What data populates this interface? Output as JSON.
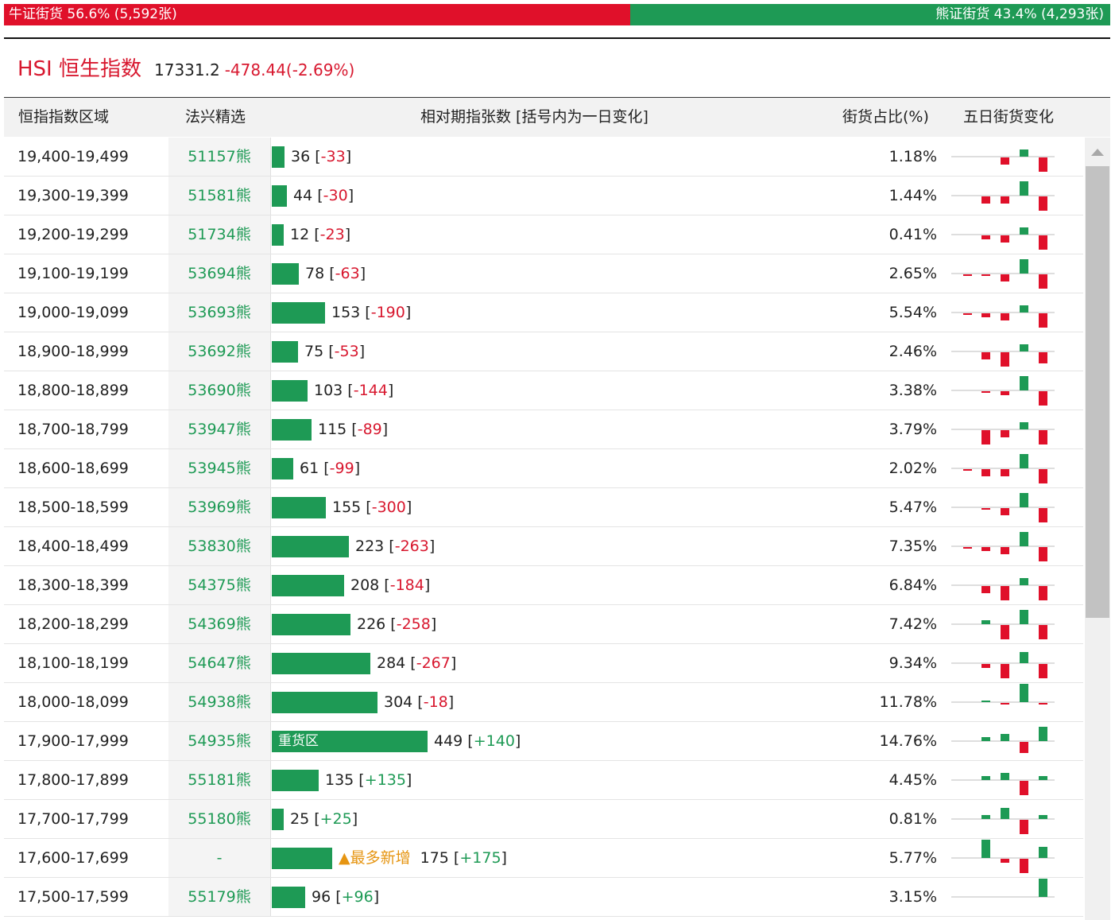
{
  "ratio": {
    "bull_label": "牛证街货 56.6% (5,592张)",
    "bear_label": "熊证街货 43.4% (4,293张)",
    "bull_fraction": 0.566,
    "bull_color": "#e0102a",
    "bear_color": "#1e9a55"
  },
  "index": {
    "code": "HSI 恒生指数",
    "price": "17331.2",
    "change": "-478.44(-2.69%)"
  },
  "table": {
    "headers": {
      "range": "恒指指数区域",
      "pick": "法兴精选",
      "contracts": "相对期指张数 [括号内为一日变化]",
      "pct": "街货占比(%)",
      "five_day": "五日街货变化"
    },
    "rows": [
      {
        "range": "19,400-19,499",
        "pick": "51157熊",
        "count": "36",
        "change": "-33",
        "pct": "1.18%",
        "spark": [
          0,
          0,
          -1,
          1,
          -2
        ]
      },
      {
        "range": "19,300-19,399",
        "pick": "51581熊",
        "count": "44",
        "change": "-30",
        "pct": "1.44%",
        "spark": [
          0,
          -1,
          -1,
          2,
          -2
        ]
      },
      {
        "range": "19,200-19,299",
        "pick": "51734熊",
        "count": "12",
        "change": "-23",
        "pct": "0.41%",
        "spark": [
          0,
          -0.5,
          -1,
          1,
          -2
        ]
      },
      {
        "range": "19,100-19,199",
        "pick": "53694熊",
        "count": "78",
        "change": "-63",
        "pct": "2.65%",
        "spark": [
          -0.25,
          -0.25,
          -1,
          2,
          -2
        ]
      },
      {
        "range": "19,000-19,099",
        "pick": "53693熊",
        "count": "153",
        "change": "-190",
        "pct": "5.54%",
        "spark": [
          -0.25,
          -0.5,
          -1,
          1,
          -2
        ]
      },
      {
        "range": "18,900-18,999",
        "pick": "53692熊",
        "count": "75",
        "change": "-53",
        "pct": "2.46%",
        "spark": [
          0,
          -1,
          -2,
          1,
          -1.5
        ]
      },
      {
        "range": "18,800-18,899",
        "pick": "53690熊",
        "count": "103",
        "change": "-144",
        "pct": "3.38%",
        "spark": [
          0,
          -0.25,
          -0.5,
          2,
          -2
        ]
      },
      {
        "range": "18,700-18,799",
        "pick": "53947熊",
        "count": "115",
        "change": "-89",
        "pct": "3.79%",
        "spark": [
          0,
          -2,
          -1,
          1,
          -2
        ]
      },
      {
        "range": "18,600-18,699",
        "pick": "53945熊",
        "count": "61",
        "change": "-99",
        "pct": "2.02%",
        "spark": [
          -0.25,
          -1,
          -1,
          2,
          -2
        ]
      },
      {
        "range": "18,500-18,599",
        "pick": "53969熊",
        "count": "155",
        "change": "-300",
        "pct": "5.47%",
        "spark": [
          0,
          -0.25,
          -1,
          2,
          -2
        ]
      },
      {
        "range": "18,400-18,499",
        "pick": "53830熊",
        "count": "223",
        "change": "-263",
        "pct": "7.35%",
        "spark": [
          -0.25,
          -0.5,
          -1,
          2,
          -2
        ]
      },
      {
        "range": "18,300-18,399",
        "pick": "54375熊",
        "count": "208",
        "change": "-184",
        "pct": "6.84%",
        "spark": [
          0,
          -1,
          -2,
          1,
          -2
        ]
      },
      {
        "range": "18,200-18,299",
        "pick": "54369熊",
        "count": "226",
        "change": "-258",
        "pct": "7.42%",
        "spark": [
          0,
          0.5,
          -2,
          2,
          -2
        ]
      },
      {
        "range": "18,100-18,199",
        "pick": "54647熊",
        "count": "284",
        "change": "-267",
        "pct": "9.34%",
        "spark": [
          0,
          -0.5,
          -2,
          1.5,
          -2
        ]
      },
      {
        "range": "18,000-18,099",
        "pick": "54938熊",
        "count": "304",
        "change": "-18",
        "pct": "11.78%",
        "spark": [
          0,
          0.25,
          -0.25,
          2.5,
          -0.25
        ]
      },
      {
        "range": "17,900-17,999",
        "pick": "54935熊",
        "count": "449",
        "change": "+140",
        "pct": "14.76%",
        "spark": [
          0,
          0.5,
          1,
          -1.5,
          2
        ],
        "bar_label": "重货区"
      },
      {
        "range": "17,800-17,899",
        "pick": "55181熊",
        "count": "135",
        "change": "+135",
        "pct": "4.45%",
        "spark": [
          0,
          0.5,
          1,
          -2,
          0.5
        ]
      },
      {
        "range": "17,700-17,799",
        "pick": "55180熊",
        "count": "25",
        "change": "+25",
        "pct": "0.81%",
        "spark": [
          0,
          0.5,
          1.5,
          -2,
          0.5
        ]
      },
      {
        "range": "17,600-17,699",
        "pick": "-",
        "count": "175",
        "change": "+175",
        "pct": "5.77%",
        "spark": [
          0,
          2.5,
          -0.5,
          -2,
          1.5
        ],
        "max_label": "▲最多新增"
      },
      {
        "range": "17,500-17,599",
        "pick": "55179熊",
        "count": "96",
        "change": "+96",
        "pct": "3.15%",
        "spark": [
          0,
          0,
          0,
          0,
          2.5
        ]
      }
    ]
  }
}
